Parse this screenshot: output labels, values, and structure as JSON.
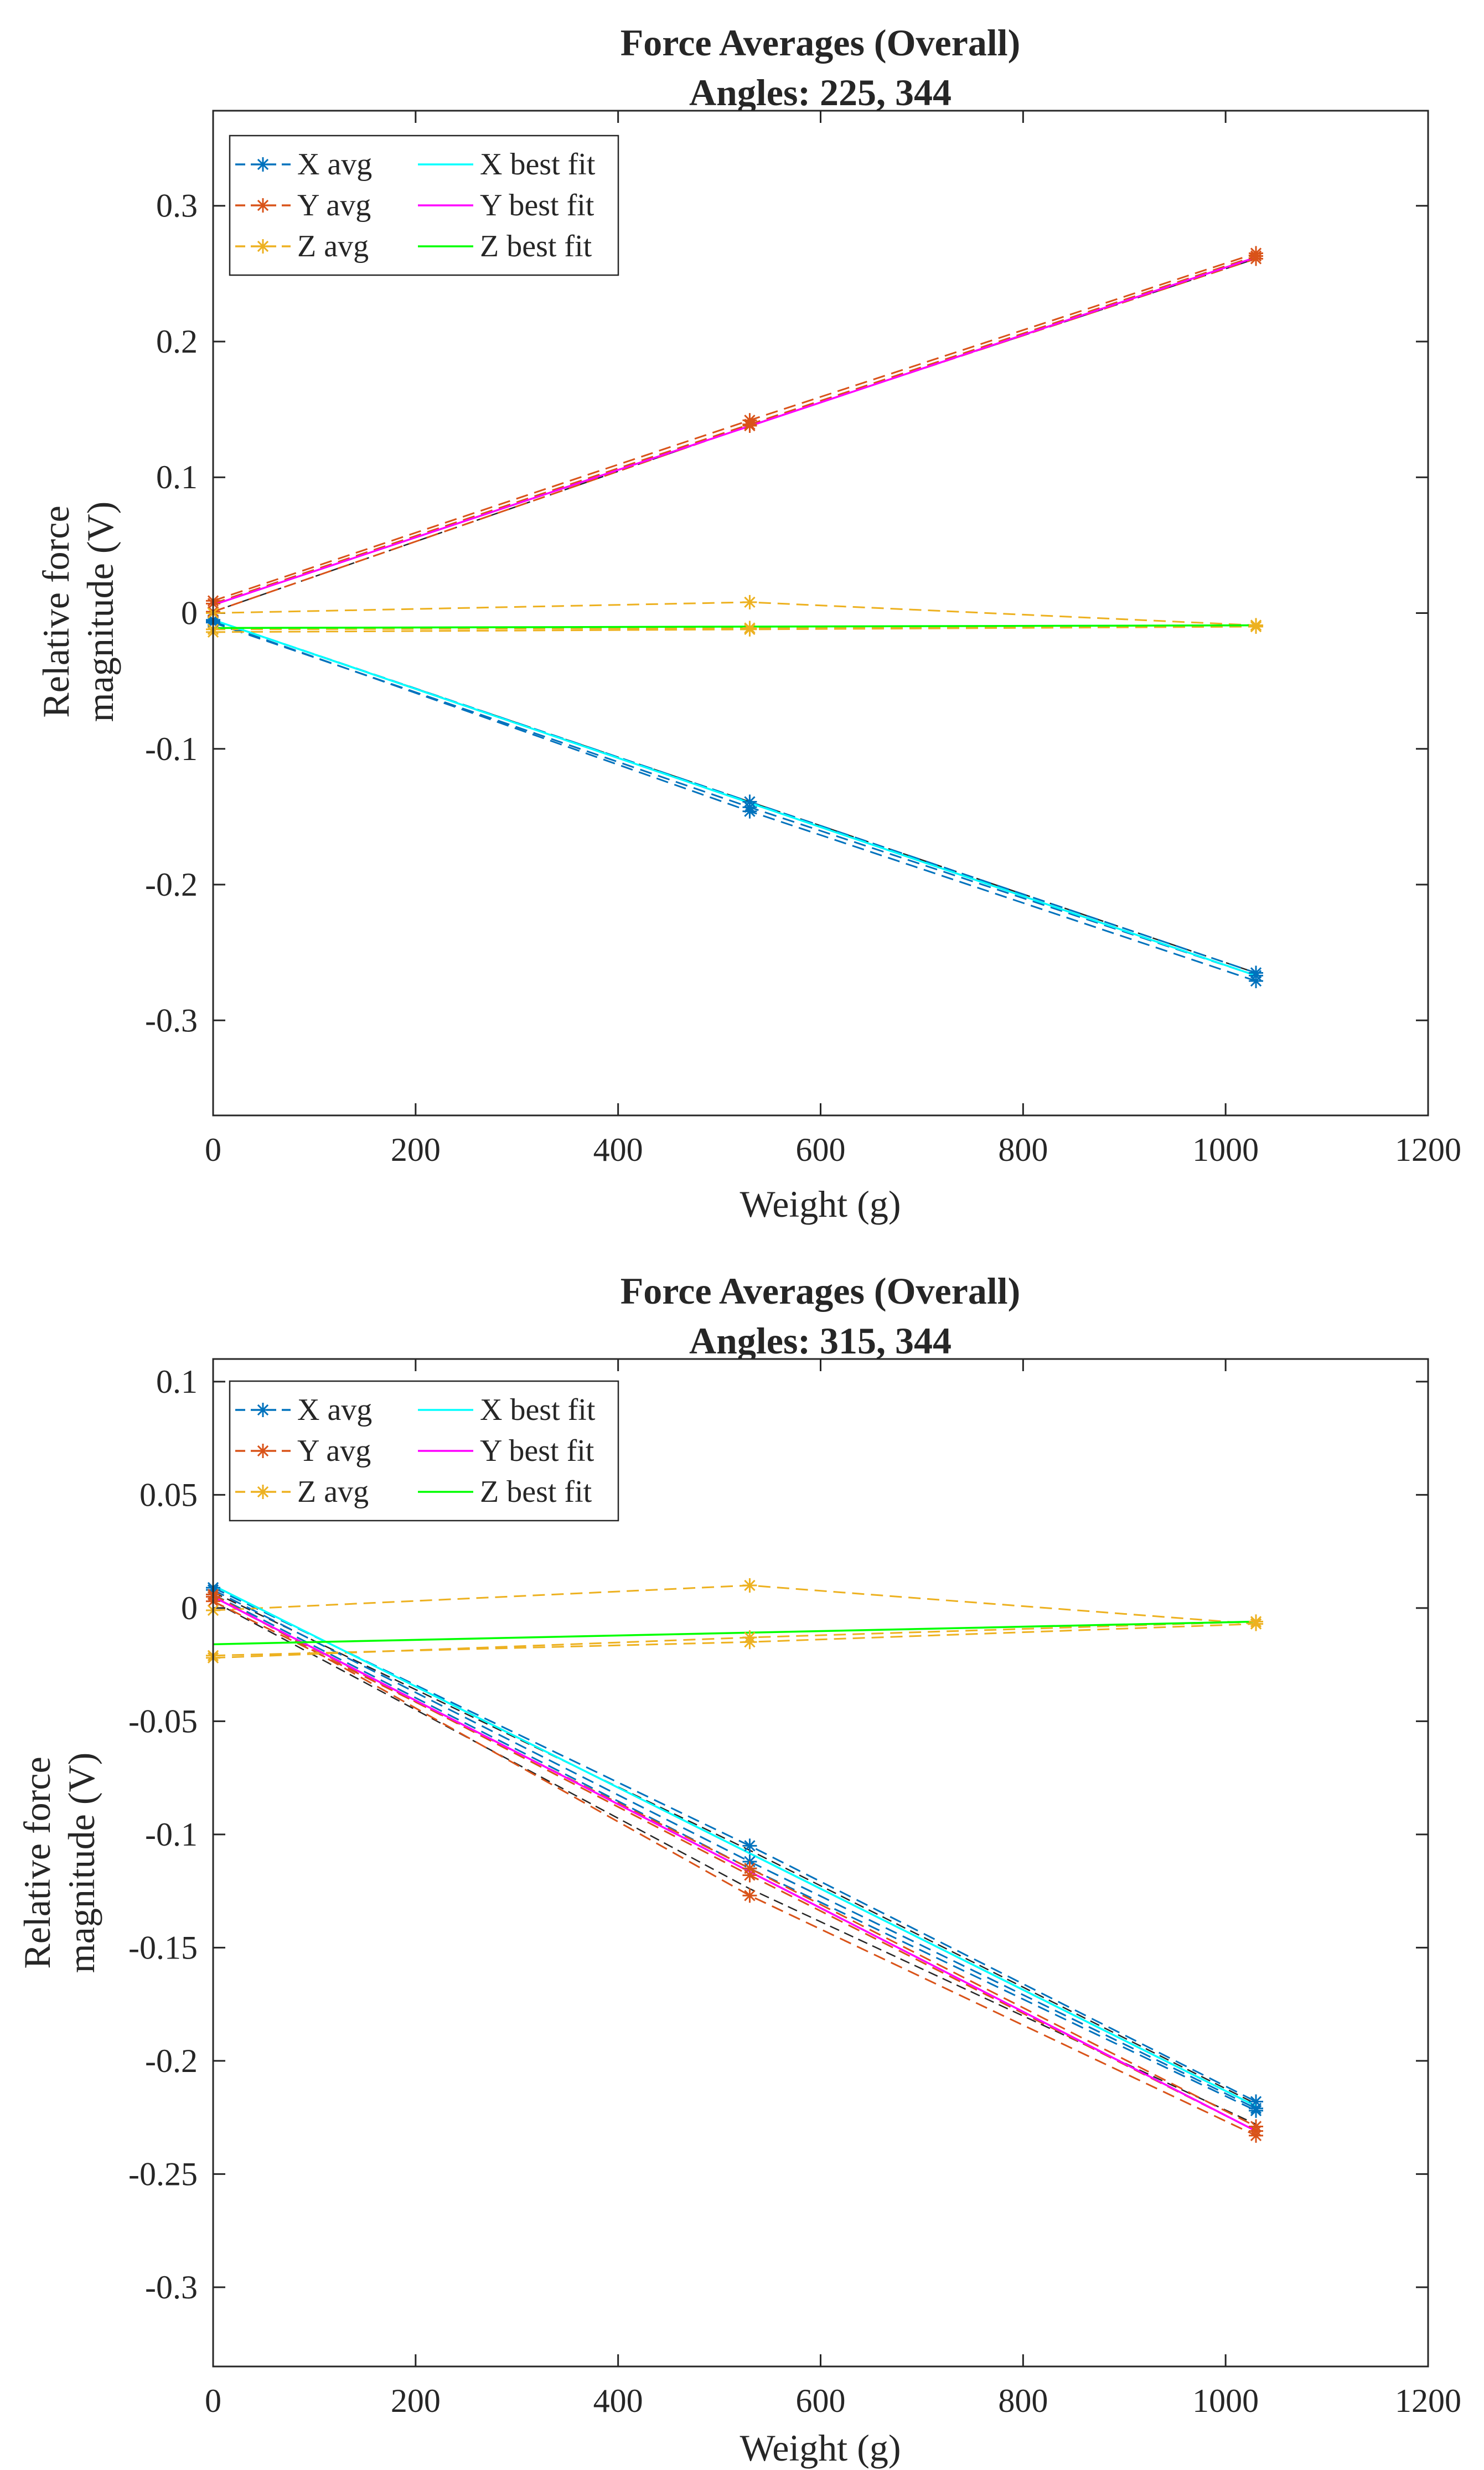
{
  "chart_data": [
    {
      "type": "line",
      "title": "Force Averages (Overall)",
      "subtitle": "Angles: 225, 344",
      "xlabel": "Weight (g)",
      "ylabel_line1": "Relative force",
      "ylabel_line2": "magnitude (V)",
      "xlim": [
        0,
        1200
      ],
      "ylim": [
        -0.37,
        0.37
      ],
      "xticks": [
        0,
        200,
        400,
        600,
        800,
        1000,
        1200
      ],
      "xtick_labels": [
        "0",
        "200",
        "400",
        "600",
        "800",
        "1000",
        "1200"
      ],
      "yticks": [
        0.3,
        0.2,
        0.1,
        0,
        -0.1,
        -0.2,
        -0.3
      ],
      "ytick_labels": [
        "0.3",
        "0.2",
        "0.1",
        "0",
        "-0.1",
        "-0.2",
        "-0.3"
      ],
      "legend": [
        {
          "label": "X avg",
          "color": "#0072BD",
          "style": "dashed",
          "marker": "*"
        },
        {
          "label": "Y avg",
          "color": "#D95319",
          "style": "dashed",
          "marker": "*"
        },
        {
          "label": "Z avg",
          "color": "#EDB120",
          "style": "dashed",
          "marker": "*"
        },
        {
          "label": "X best fit",
          "color": "#00FFFF",
          "style": "solid",
          "marker": ""
        },
        {
          "label": "Y best fit",
          "color": "#FF00FF",
          "style": "solid",
          "marker": ""
        },
        {
          "label": "Z best fit",
          "color": "#00FF00",
          "style": "solid",
          "marker": ""
        }
      ],
      "avg_series": [
        {
          "name": "X avg",
          "color": "#0072BD",
          "x": [
            0,
            530,
            1030
          ],
          "values": [
            -0.005,
            -0.139,
            -0.265
          ]
        },
        {
          "name": "X avg",
          "color": "#0072BD",
          "x": [
            0,
            530,
            1030
          ],
          "values": [
            -0.007,
            -0.143,
            -0.267
          ]
        },
        {
          "name": "X avg",
          "color": "#0072BD",
          "x": [
            0,
            530,
            1030
          ],
          "values": [
            -0.006,
            -0.146,
            -0.271
          ]
        },
        {
          "name": "Y avg",
          "color": "#D95319",
          "x": [
            0,
            530,
            1030
          ],
          "values": [
            0.009,
            0.142,
            0.265
          ]
        },
        {
          "name": "Y avg",
          "color": "#D95319",
          "x": [
            0,
            530,
            1030
          ],
          "values": [
            0.007,
            0.139,
            0.263
          ]
        },
        {
          "name": "Y avg",
          "color": "#D95319",
          "x": [
            0,
            530,
            1030
          ],
          "values": [
            0.001,
            0.138,
            0.261
          ]
        },
        {
          "name": "Z avg",
          "color": "#EDB120",
          "x": [
            0,
            530,
            1030
          ],
          "values": [
            0.0,
            0.008,
            -0.009
          ]
        },
        {
          "name": "Z avg",
          "color": "#EDB120",
          "x": [
            0,
            530,
            1030
          ],
          "values": [
            -0.012,
            -0.011,
            -0.009
          ]
        },
        {
          "name": "Z avg",
          "color": "#EDB120",
          "x": [
            0,
            530,
            1030
          ],
          "values": [
            -0.014,
            -0.012,
            -0.01
          ]
        }
      ],
      "fit_series": [
        {
          "name": "X best fit",
          "color": "#00FFFF",
          "x": [
            0,
            1030
          ],
          "values": [
            -0.005,
            -0.267
          ]
        },
        {
          "name": "Y best fit",
          "color": "#FF00FF",
          "x": [
            0,
            1030
          ],
          "values": [
            0.006,
            0.262
          ]
        },
        {
          "name": "Z best fit",
          "color": "#00FF00",
          "x": [
            0,
            1030
          ],
          "values": [
            -0.011,
            -0.009
          ]
        }
      ],
      "sep_series": [
        {
          "color": "#262626",
          "x": [
            0,
            530,
            1030
          ],
          "values": [
            -0.005,
            -0.139,
            -0.265
          ]
        },
        {
          "color": "#262626",
          "x": [
            0,
            530,
            1030
          ],
          "values": [
            0.001,
            0.138,
            0.261
          ]
        }
      ]
    },
    {
      "type": "line",
      "title": "Force Averages (Overall)",
      "subtitle": "Angles: 315, 344",
      "xlabel": "Weight (g)",
      "ylabel_line1": "Relative force",
      "ylabel_line2": "magnitude (V)",
      "xlim": [
        0,
        1200
      ],
      "ylim": [
        -0.335,
        0.11
      ],
      "xticks": [
        0,
        200,
        400,
        600,
        800,
        1000,
        1200
      ],
      "xtick_labels": [
        "0",
        "200",
        "400",
        "600",
        "800",
        "1000",
        "1200"
      ],
      "yticks": [
        0.1,
        0.05,
        0,
        -0.05,
        -0.1,
        -0.15,
        -0.2,
        -0.25,
        -0.3
      ],
      "ytick_labels": [
        "0.1",
        "0.05",
        "0",
        "-0.05",
        "-0.1",
        "-0.15",
        "-0.2",
        "-0.25",
        "-0.3"
      ],
      "legend": [
        {
          "label": "X avg",
          "color": "#0072BD",
          "style": "dashed",
          "marker": "*"
        },
        {
          "label": "Y avg",
          "color": "#D95319",
          "style": "dashed",
          "marker": "*"
        },
        {
          "label": "Z avg",
          "color": "#EDB120",
          "style": "dashed",
          "marker": "*"
        },
        {
          "label": "X best fit",
          "color": "#00FFFF",
          "style": "solid",
          "marker": ""
        },
        {
          "label": "Y best fit",
          "color": "#FF00FF",
          "style": "solid",
          "marker": ""
        },
        {
          "label": "Z best fit",
          "color": "#00FF00",
          "style": "solid",
          "marker": ""
        }
      ],
      "avg_series": [
        {
          "name": "X avg",
          "color": "#0072BD",
          "x": [
            0,
            530,
            1030
          ],
          "values": [
            0.009,
            -0.105,
            -0.218
          ]
        },
        {
          "name": "X avg",
          "color": "#0072BD",
          "x": [
            0,
            530,
            1030
          ],
          "values": [
            0.008,
            -0.112,
            -0.221
          ]
        },
        {
          "name": "X avg",
          "color": "#0072BD",
          "x": [
            0,
            530,
            1030
          ],
          "values": [
            0.006,
            -0.115,
            -0.222
          ]
        },
        {
          "name": "Y avg",
          "color": "#D95319",
          "x": [
            0,
            530,
            1030
          ],
          "values": [
            0.006,
            -0.127,
            -0.233
          ]
        },
        {
          "name": "Y avg",
          "color": "#D95319",
          "x": [
            0,
            530,
            1030
          ],
          "values": [
            0.005,
            -0.118,
            -0.231
          ]
        },
        {
          "name": "Y avg",
          "color": "#D95319",
          "x": [
            0,
            530,
            1030
          ],
          "values": [
            0.003,
            -0.115,
            -0.229
          ]
        },
        {
          "name": "Z avg",
          "color": "#EDB120",
          "x": [
            0,
            530,
            1030
          ],
          "values": [
            -0.001,
            0.01,
            -0.007
          ]
        },
        {
          "name": "Z avg",
          "color": "#EDB120",
          "x": [
            0,
            530,
            1030
          ],
          "values": [
            -0.021,
            -0.015,
            -0.007
          ]
        },
        {
          "name": "Z avg",
          "color": "#EDB120",
          "x": [
            0,
            530,
            1030
          ],
          "values": [
            -0.022,
            -0.013,
            -0.006
          ]
        }
      ],
      "fit_series": [
        {
          "name": "X best fit",
          "color": "#00FFFF",
          "x": [
            0,
            1030
          ],
          "values": [
            0.01,
            -0.22
          ]
        },
        {
          "name": "Y best fit",
          "color": "#FF00FF",
          "x": [
            0,
            1030
          ],
          "values": [
            0.005,
            -0.231
          ]
        },
        {
          "name": "Z best fit",
          "color": "#00FF00",
          "x": [
            0,
            1030
          ],
          "values": [
            -0.016,
            -0.006
          ]
        }
      ],
      "sep_series": [
        {
          "color": "#262626",
          "x": [
            0,
            530,
            1030
          ],
          "values": [
            0.003,
            -0.124,
            -0.228
          ]
        },
        {
          "color": "#262626",
          "x": [
            0,
            530,
            1030
          ],
          "values": [
            0.007,
            -0.107,
            -0.219
          ]
        }
      ]
    }
  ]
}
